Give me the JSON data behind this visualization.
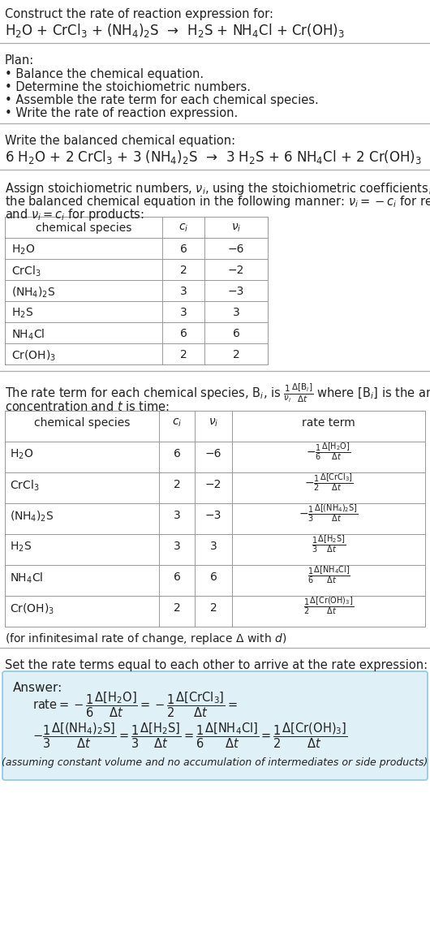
{
  "bg_color": "#ffffff",
  "title_line1": "Construct the rate of reaction expression for:",
  "reaction_unbalanced": "H$_2$O + CrCl$_3$ + (NH$_4$)$_2$S  →  H$_2$S + NH$_4$Cl + Cr(OH)$_3$",
  "plan_header": "Plan:",
  "plan_items": [
    "• Balance the chemical equation.",
    "• Determine the stoichiometric numbers.",
    "• Assemble the rate term for each chemical species.",
    "• Write the rate of reaction expression."
  ],
  "balanced_header": "Write the balanced chemical equation:",
  "reaction_balanced": "6 H$_2$O + 2 CrCl$_3$ + 3 (NH$_4$)$_2$S  →  3 H$_2$S + 6 NH$_4$Cl + 2 Cr(OH)$_3$",
  "stoich_text1": "Assign stoichiometric numbers, $\\nu_i$, using the stoichiometric coefficients, $c_i$, from",
  "stoich_text2": "the balanced chemical equation in the following manner: $\\nu_i = -c_i$ for reactants",
  "stoich_text3": "and $\\nu_i = c_i$ for products:",
  "table1_headers": [
    "chemical species",
    "$c_i$",
    "$\\nu_i$"
  ],
  "table1_rows": [
    [
      "H$_2$O",
      "6",
      "−6"
    ],
    [
      "CrCl$_3$",
      "2",
      "−2"
    ],
    [
      "(NH$_4$)$_2$S",
      "3",
      "−3"
    ],
    [
      "H$_2$S",
      "3",
      "3"
    ],
    [
      "NH$_4$Cl",
      "6",
      "6"
    ],
    [
      "Cr(OH)$_3$",
      "2",
      "2"
    ]
  ],
  "rate_text1": "The rate term for each chemical species, B$_i$, is $\\frac{1}{\\nu_i}\\frac{\\Delta[\\mathrm{B}_i]}{\\Delta t}$ where [B$_i$] is the amount",
  "rate_text2": "concentration and $t$ is time:",
  "table2_headers": [
    "chemical species",
    "$c_i$",
    "$\\nu_i$",
    "rate term"
  ],
  "table2_rows": [
    [
      "H$_2$O",
      "6",
      "−6",
      "$-\\frac{1}{6}\\frac{\\Delta[\\mathrm{H_2O}]}{\\Delta t}$"
    ],
    [
      "CrCl$_3$",
      "2",
      "−2",
      "$-\\frac{1}{2}\\frac{\\Delta[\\mathrm{CrCl_3}]}{\\Delta t}$"
    ],
    [
      "(NH$_4$)$_2$S",
      "3",
      "−3",
      "$-\\frac{1}{3}\\frac{\\Delta[(\\mathrm{NH_4})_2\\mathrm{S}]}{\\Delta t}$"
    ],
    [
      "H$_2$S",
      "3",
      "3",
      "$\\frac{1}{3}\\frac{\\Delta[\\mathrm{H_2S}]}{\\Delta t}$"
    ],
    [
      "NH$_4$Cl",
      "6",
      "6",
      "$\\frac{1}{6}\\frac{\\Delta[\\mathrm{NH_4Cl}]}{\\Delta t}$"
    ],
    [
      "Cr(OH)$_3$",
      "2",
      "2",
      "$\\frac{1}{2}\\frac{\\Delta[\\mathrm{Cr(OH)_3}]}{\\Delta t}$"
    ]
  ],
  "infinitesimal_note": "(for infinitesimal rate of change, replace Δ with $d$)",
  "set_rate_text": "Set the rate terms equal to each other to arrive at the rate expression:",
  "answer_label": "Answer:",
  "answer_box_color": "#dff0f7",
  "answer_box_border": "#8ec8e0",
  "assuming_note": "(assuming constant volume and no accumulation of intermediates or side products)"
}
